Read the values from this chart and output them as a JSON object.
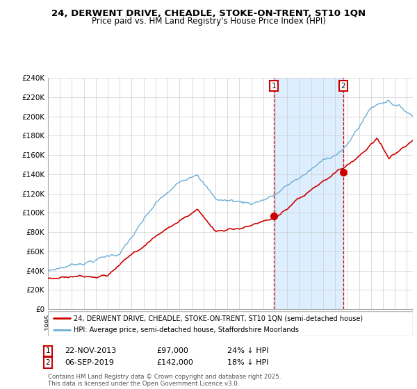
{
  "title": "24, DERWENT DRIVE, CHEADLE, STOKE-ON-TRENT, ST10 1QN",
  "subtitle": "Price paid vs. HM Land Registry's House Price Index (HPI)",
  "ylim": [
    0,
    240000
  ],
  "yticks": [
    0,
    20000,
    40000,
    60000,
    80000,
    100000,
    120000,
    140000,
    160000,
    180000,
    200000,
    220000,
    240000
  ],
  "ytick_labels": [
    "£0",
    "£20K",
    "£40K",
    "£60K",
    "£80K",
    "£100K",
    "£120K",
    "£140K",
    "£160K",
    "£180K",
    "£200K",
    "£220K",
    "£240K"
  ],
  "hpi_color": "#6baed6",
  "price_color": "#cc0000",
  "shade_color": "#ddeeff",
  "marker1_date": 2013.9,
  "marker1_price": 97000,
  "marker1_label": "22-NOV-2013",
  "marker1_text": "£97,000",
  "marker1_pct": "24% ↓ HPI",
  "marker2_date": 2019.68,
  "marker2_price": 142000,
  "marker2_label": "06-SEP-2019",
  "marker2_text": "£142,000",
  "marker2_pct": "18% ↓ HPI",
  "legend_line1": "24, DERWENT DRIVE, CHEADLE, STOKE-ON-TRENT, ST10 1QN (semi-detached house)",
  "legend_line2": "HPI: Average price, semi-detached house, Staffordshire Moorlands",
  "footnote": "Contains HM Land Registry data © Crown copyright and database right 2025.\nThis data is licensed under the Open Government Licence v3.0.",
  "background_color": "#ffffff",
  "grid_color": "#cccccc",
  "xlim_start": 1995,
  "xlim_end": 2025.5
}
